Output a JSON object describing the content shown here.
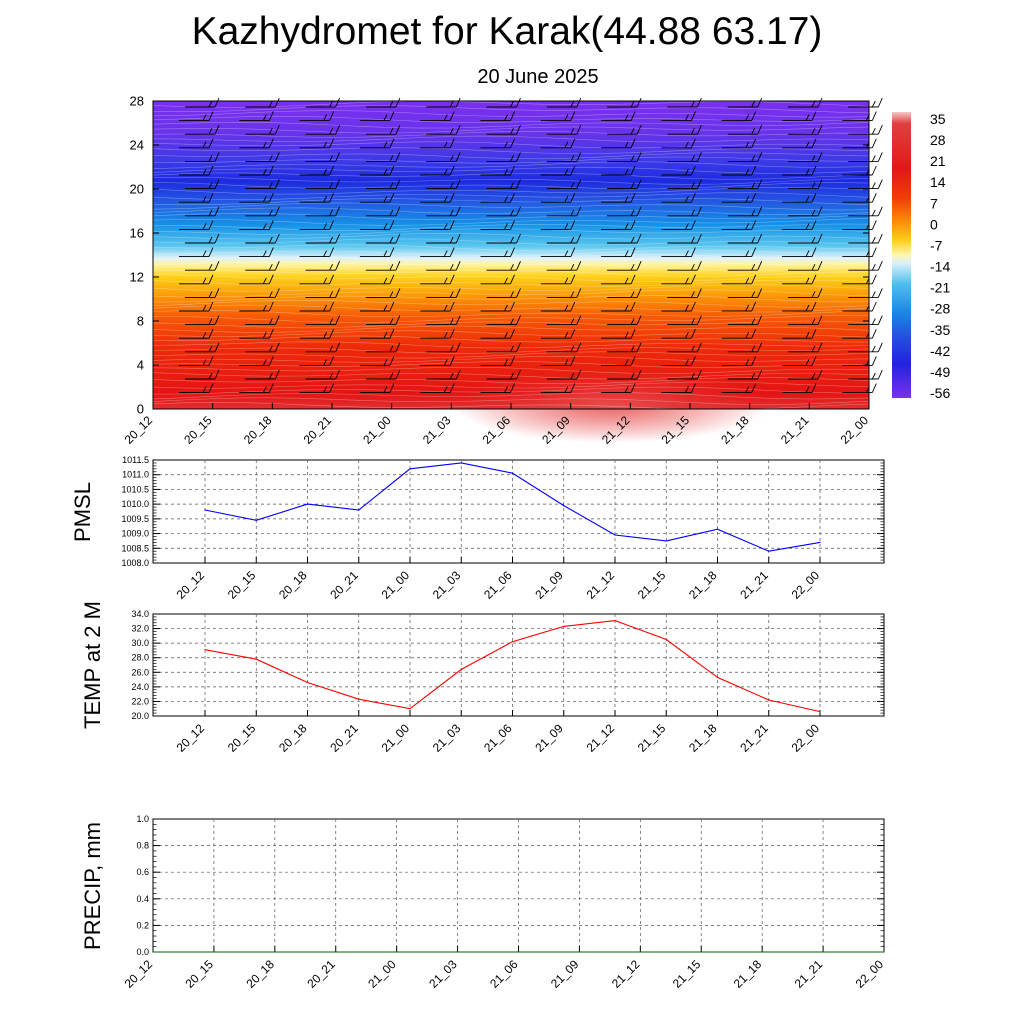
{
  "title": "Kazhydromet for Karak(44.88 63.17)",
  "subtitle": "20 June 2025",
  "colors": {
    "pmsl_line": "#0000ff",
    "temp_line": "#ff0000",
    "precip_line": "#006400"
  },
  "chart_data": [
    {
      "id": "temperature_wind_heatmap",
      "type": "heatmap",
      "title": "",
      "xlabel": "",
      "ylabel": "",
      "x_ticks": [
        "20_12",
        "20_15",
        "20_18",
        "20_21",
        "21_00",
        "21_03",
        "21_06",
        "21_09",
        "21_12",
        "21_15",
        "21_18",
        "21_21",
        "22_00"
      ],
      "y_ticks": [
        0,
        4,
        8,
        12,
        16,
        20,
        24,
        28
      ],
      "ylim": [
        0,
        28
      ],
      "colorbar_labels": [
        "35",
        "28",
        "21",
        "14",
        "7",
        "0",
        "-7",
        "-14",
        "-21",
        "-28",
        "-35",
        "-42",
        "-49",
        "-56"
      ],
      "colorbar_range": [
        -60,
        38
      ],
      "wind_barbs": true,
      "grid": false
    },
    {
      "id": "pmsl",
      "type": "line",
      "ylabel": "PMSL",
      "x": [
        "20_12",
        "20_15",
        "20_18",
        "20_21",
        "21_00",
        "21_03",
        "21_06",
        "21_09",
        "21_12",
        "21_15",
        "21_18",
        "21_21",
        "22_00"
      ],
      "values": [
        1009.8,
        1009.45,
        1010.0,
        1009.8,
        1011.2,
        1011.4,
        1011.05,
        1009.95,
        1008.95,
        1008.75,
        1009.15,
        1008.4,
        1008.7
      ],
      "ylim": [
        1008.0,
        1011.5
      ],
      "y_ticks": [
        "1008.0",
        "1008.5",
        "1009.0",
        "1009.5",
        "1010.0",
        "1010.5",
        "1011.0",
        "1011.5"
      ],
      "grid": true
    },
    {
      "id": "temp2m",
      "type": "line",
      "ylabel": "TEMP at 2 M",
      "x": [
        "20_12",
        "20_15",
        "20_18",
        "20_21",
        "21_00",
        "21_03",
        "21_06",
        "21_09",
        "21_12",
        "21_15",
        "21_18",
        "21_21",
        "22_00"
      ],
      "values": [
        29.1,
        27.8,
        24.6,
        22.3,
        21.0,
        26.4,
        30.2,
        32.3,
        33.1,
        30.5,
        25.3,
        22.2,
        20.6
      ],
      "ylim": [
        20.0,
        34.0
      ],
      "y_ticks": [
        "20.0",
        "22.0",
        "24.0",
        "26.0",
        "28.0",
        "30.0",
        "32.0",
        "34.0"
      ],
      "grid": true
    },
    {
      "id": "precip",
      "type": "line",
      "ylabel": "PRECIP, mm",
      "x": [
        "20_12",
        "20_15",
        "20_18",
        "20_21",
        "21_00",
        "21_03",
        "21_06",
        "21_09",
        "21_12",
        "21_15",
        "21_18",
        "21_21",
        "22_00"
      ],
      "values": [
        0,
        0,
        0,
        0,
        0,
        0,
        0,
        0,
        0,
        0,
        0,
        0,
        0
      ],
      "ylim": [
        0.0,
        1.0
      ],
      "y_ticks": [
        "0.0",
        "0.2",
        "0.4",
        "0.6",
        "0.8",
        "1.0"
      ],
      "grid": true
    }
  ]
}
